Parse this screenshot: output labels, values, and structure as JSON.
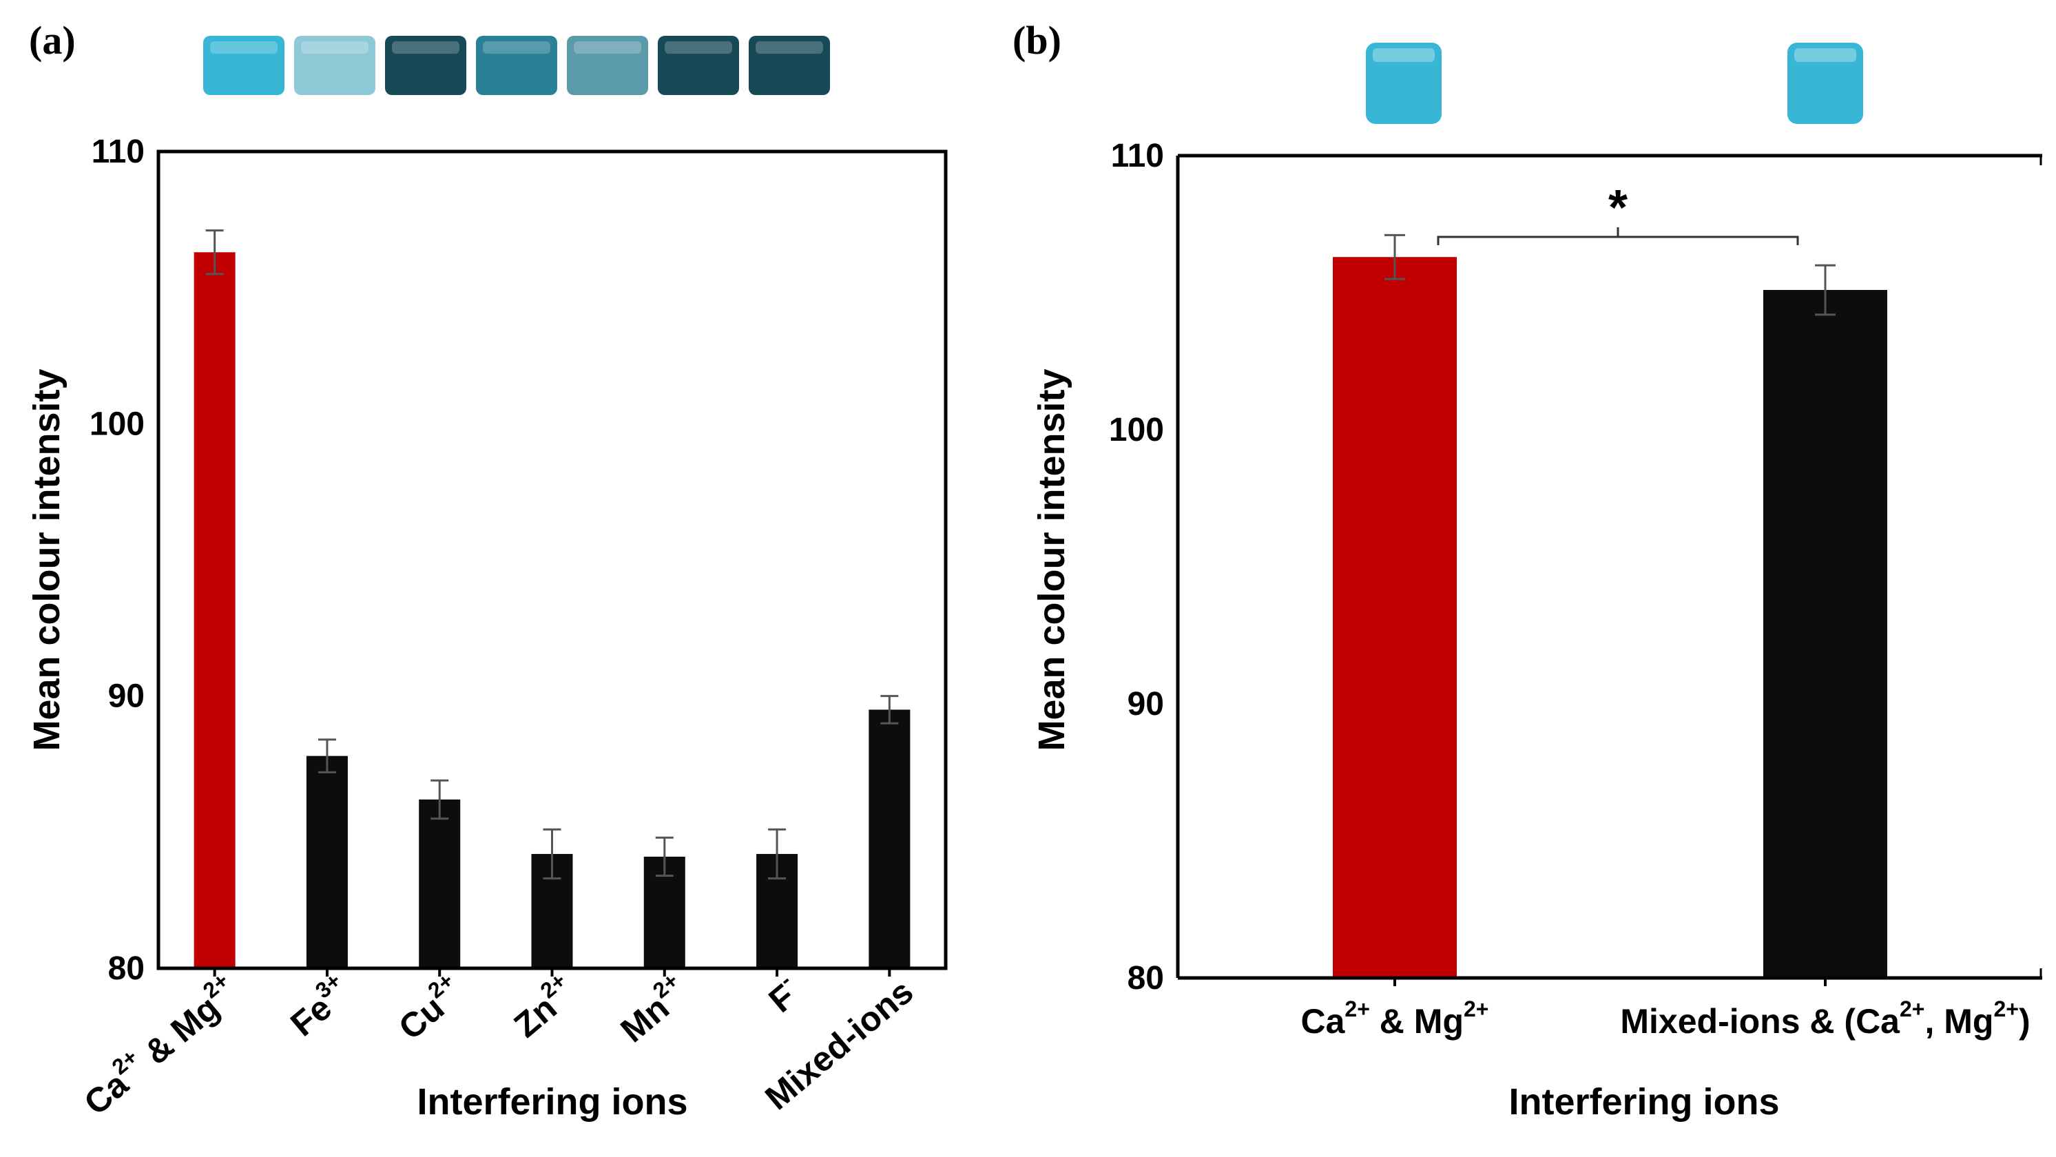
{
  "colors": {
    "highlight": "#c00000",
    "bar": "#0d0d0d",
    "error": "#555555",
    "vial_bright": "#38b6d6",
    "vial_pale": "#8ec9d8",
    "vial_dark": "#164a56",
    "vial_mid": "#2a7f99",
    "vial_grey_teal": "#5b9aa8"
  },
  "chart_data": [
    {
      "panel": "(a)",
      "type": "bar",
      "title": "",
      "xlabel": "Interfering ions",
      "ylabel": "Mean colour intensity",
      "ylim": [
        80,
        110
      ],
      "yticks": [
        80,
        90,
        100,
        110
      ],
      "categories": [
        {
          "base": "Ca & Mg",
          "supers": [
            "2+",
            "2+"
          ]
        },
        {
          "base": "Fe",
          "supers": [
            "3+"
          ]
        },
        {
          "base": "Cu",
          "supers": [
            "2+"
          ]
        },
        {
          "base": "Zn",
          "supers": [
            "2+"
          ]
        },
        {
          "base": "Mn",
          "supers": [
            "2+"
          ]
        },
        {
          "base": "F",
          "supers": [
            "-"
          ]
        },
        {
          "base": "Mixed-ions",
          "supers": []
        }
      ],
      "values": [
        106.3,
        87.8,
        86.2,
        84.2,
        84.1,
        84.2,
        89.5
      ],
      "errors": [
        0.8,
        0.6,
        0.7,
        0.9,
        0.7,
        0.9,
        0.5
      ],
      "highlight_index": 0,
      "vial_colors": [
        "vial_bright",
        "vial_pale",
        "vial_dark",
        "vial_mid",
        "vial_grey_teal",
        "vial_dark",
        "vial_dark"
      ]
    },
    {
      "panel": "(b)",
      "type": "bar",
      "title": "",
      "xlabel": "Interfering ions",
      "ylabel": "Mean colour intensity",
      "ylim": [
        80,
        110
      ],
      "yticks": [
        80,
        90,
        100,
        110
      ],
      "categories": [
        {
          "base": "Ca & Mg",
          "supers": [
            "2+",
            "2+"
          ]
        },
        {
          "base": "Mixed-ions & (Ca, Mg)",
          "supers": [
            "2+",
            "2+"
          ]
        }
      ],
      "values": [
        106.3,
        105.1
      ],
      "errors": [
        0.8,
        0.9
      ],
      "highlight_index": 0,
      "significance": "*",
      "vial_colors": [
        "vial_bright",
        "vial_bright"
      ]
    }
  ]
}
